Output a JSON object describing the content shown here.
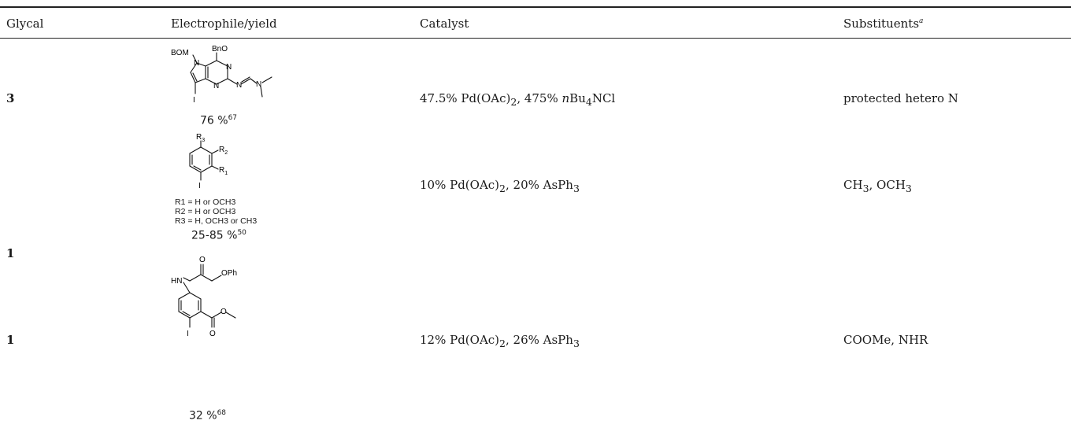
{
  "headers": {
    "glycal": "Glycal",
    "electrophile": "Electrophile/yield",
    "catalyst": "Catalyst",
    "substituents": "Substituents",
    "substituents_note": "a"
  },
  "rows": [
    {
      "glycal": "3",
      "yield": "76 %",
      "yield_ref": "67",
      "catalyst": [
        "47.5% Pd(OAc)",
        "2",
        ", 475% ",
        "n",
        "Bu",
        "4",
        "NCl"
      ],
      "substituents": "protected hetero N",
      "structure_labels": {
        "bom": "BOM",
        "n1": "N",
        "bno": "BnO",
        "n2": "N",
        "n3": "N",
        "n4": "N",
        "n5": "N",
        "i": "I"
      }
    },
    {
      "glycal": "1",
      "yield": "25-85 %",
      "yield_ref": "50",
      "catalyst": [
        "10% Pd(OAc)",
        "2",
        ", 20% AsPh",
        "3"
      ],
      "substituents": [
        "CH",
        "3",
        ", OCH",
        "3"
      ],
      "r_defs": [
        "R1 = H or OCH3",
        "R2 = H or OCH3",
        "R3 = H, OCH3 or CH3"
      ],
      "structure_labels": {
        "r1": "R",
        "r2": "R",
        "r3": "R",
        "i": "I"
      }
    },
    {
      "glycal": "1",
      "yield": "32 %",
      "yield_ref": "68",
      "catalyst": [
        "12% Pd(OAc)",
        "2",
        ", 26% AsPh",
        "3"
      ],
      "substituents": "COOMe, NHR",
      "structure_labels": {
        "o1": "O",
        "hn": "HN",
        "oph": "OPh",
        "o2": "O",
        "o3": "O",
        "i": "I"
      }
    }
  ]
}
